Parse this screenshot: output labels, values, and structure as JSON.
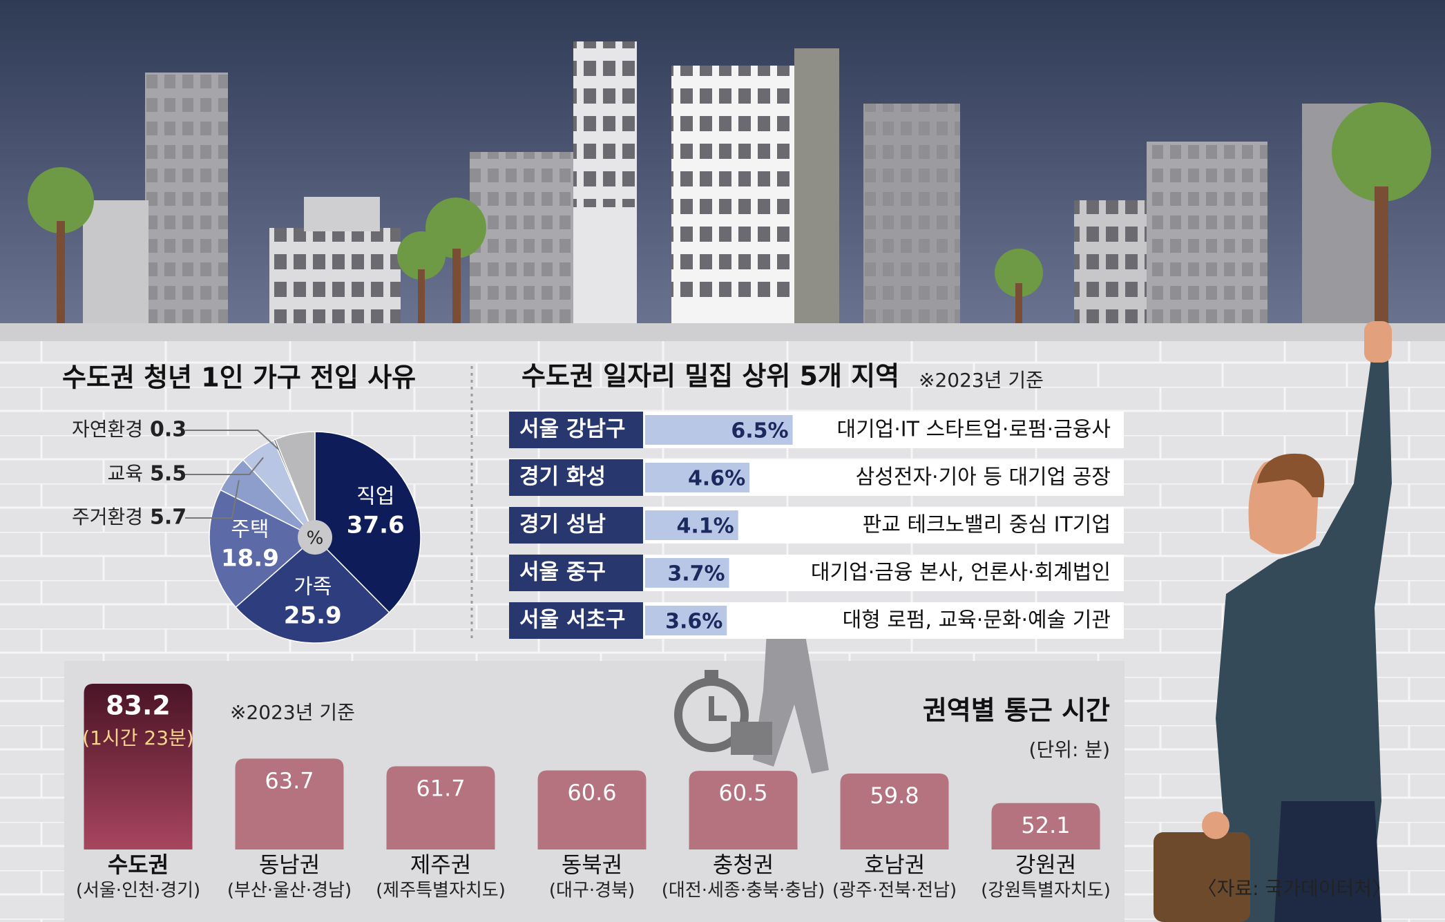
{
  "chart_data": [
    {
      "type": "pie",
      "title": "수도권 청년 1인 가구 전입 사유",
      "center_label": "%",
      "categories": [
        "직업",
        "가족",
        "주택",
        "주거환경",
        "교육",
        "자연환경",
        null
      ],
      "values": [
        37.6,
        25.9,
        18.9,
        5.7,
        5.5,
        0.3,
        6.1
      ],
      "colors": [
        "#0e1d5a",
        "#2d3d7e",
        "#5c6ba8",
        "#8d9dcc",
        "#b8c5e3",
        "#6e6e70",
        "#b9b9bb"
      ]
    },
    {
      "type": "hbar",
      "title": "수도권 일자리 밀집 상위 5개 지역",
      "note": "※2023년 기준",
      "categories": [
        "서울 강남구",
        "경기 화성",
        "경기 성남",
        "서울 중구",
        "서울 서초구"
      ],
      "values": [
        6.5,
        4.6,
        4.1,
        3.7,
        3.6
      ],
      "value_labels": [
        "6.5%",
        "4.6%",
        "4.1%",
        "3.7%",
        "3.6%"
      ],
      "descriptions": [
        "대기업·IT 스타트업·로펌·금융사",
        "삼성전자·기아 등 대기업 공장",
        "판교 테크노밸리 중심 IT기업",
        "대기업·금융 본사, 언론사·회계법인",
        "대형 로펌, 교육·문화·예술 기관"
      ],
      "color": "#b9c7e6",
      "label_color": "#28386f",
      "xlim": [
        0,
        7
      ]
    },
    {
      "type": "bar",
      "title": "권역별 통근 시간",
      "unit": "(단위: 분)",
      "note": "※2023년 기준",
      "categories": [
        "수도권",
        "동남권",
        "제주권",
        "동북권",
        "충청권",
        "호남권",
        "강원권"
      ],
      "subcategories": [
        "(서울·인천·경기)",
        "(부산·울산·경남)",
        "(제주특별자치도)",
        "(대구·경북)",
        "(대전·세종·충북·충남)",
        "(광주·전북·전남)",
        "(강원특별자치도)"
      ],
      "values": [
        83.2,
        63.7,
        61.7,
        60.6,
        60.5,
        59.8,
        52.1
      ],
      "value_notes": [
        "(1시간 23분)",
        null,
        null,
        null,
        null,
        null,
        null
      ],
      "colors": [
        "#8a2a48",
        "#b5727f",
        "#b5727f",
        "#b5727f",
        "#b5727f",
        "#b5727f",
        "#b5727f"
      ],
      "ylim": [
        40,
        85
      ]
    }
  ],
  "source": "〈자료: 국가데이터처〉"
}
